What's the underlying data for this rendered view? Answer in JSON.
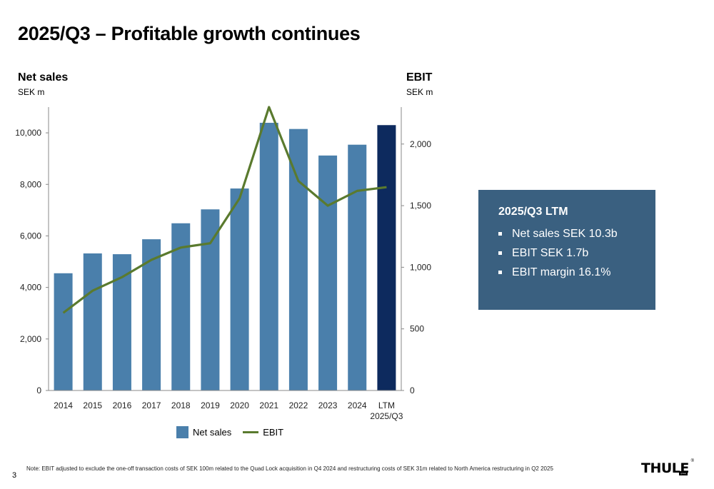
{
  "title": "2025/Q3 – Profitable growth continues",
  "left_axis": {
    "title": "Net sales",
    "unit": "SEK m"
  },
  "right_axis": {
    "title": "EBIT",
    "unit": "SEK m"
  },
  "legend": {
    "bar": "Net sales",
    "line": "EBIT"
  },
  "kpi": {
    "title": "2025/Q3 LTM",
    "items": [
      "Net sales SEK 10.3b",
      "EBIT SEK 1.7b",
      "EBIT margin 16.1%"
    ]
  },
  "footnote": "Note: EBIT adjusted to exclude the one-off transaction costs of SEK 100m related to the Quad Lock acquisition in Q4 2024 and restructuring costs of SEK 31m related to North America restructuring in Q2 2025",
  "page_number": "3",
  "logo": {
    "text": "THULE",
    "sub": "group",
    "mark": "®"
  },
  "colors": {
    "bar": "#4a7fab",
    "bar_highlight": "#0d2a5e",
    "line": "#5a7a2e",
    "kpi_box": "#3a6080"
  },
  "chart_data": {
    "type": "bar",
    "categories": [
      "2014",
      "2015",
      "2016",
      "2017",
      "2018",
      "2019",
      "2020",
      "2021",
      "2022",
      "2023",
      "2024",
      "LTM\n2025/Q3"
    ],
    "series": [
      {
        "name": "Net sales",
        "type": "bar",
        "axis": "left",
        "values": [
          4550,
          5320,
          5290,
          5870,
          6490,
          7030,
          7840,
          10390,
          10150,
          9120,
          9540,
          10300
        ]
      },
      {
        "name": "EBIT",
        "type": "line",
        "axis": "right",
        "values": [
          630,
          810,
          920,
          1060,
          1160,
          1195,
          1560,
          2300,
          1700,
          1500,
          1620,
          1650
        ]
      }
    ],
    "ylim_left": [
      0,
      11000
    ],
    "yticks_left": [
      0,
      2000,
      4000,
      6000,
      8000,
      10000
    ],
    "ytick_labels_left": [
      "0",
      "2,000",
      "4,000",
      "6,000",
      "8,000",
      "10,000"
    ],
    "ylim_right": [
      0,
      2300
    ],
    "yticks_right": [
      0,
      500,
      1000,
      1500,
      2000
    ],
    "ytick_labels_right": [
      "0",
      "500",
      "1,000",
      "1,500",
      "2,000"
    ],
    "highlight_last_bar": true,
    "grid": false,
    "legend_position": "bottom"
  }
}
